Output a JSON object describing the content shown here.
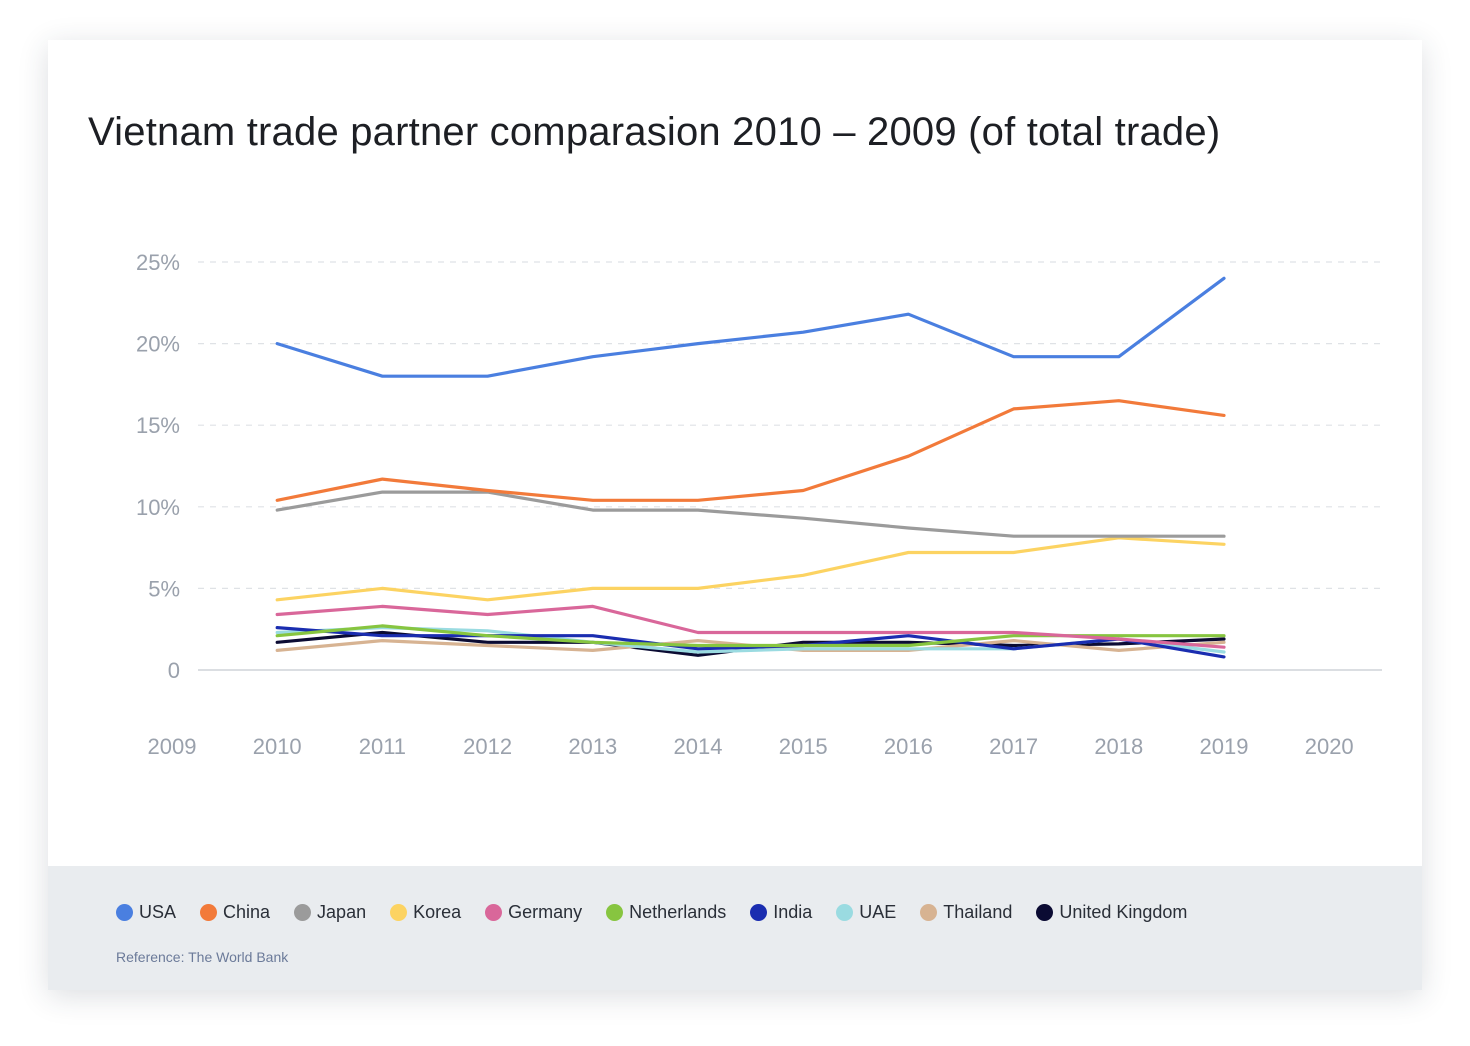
{
  "title": "Vietnam trade partner comparasion 2010 – 2009 (of total trade)",
  "reference": "Reference: The World Bank",
  "chart_data": {
    "type": "line",
    "title": "Vietnam trade partner comparasion 2010 – 2009 (of total trade)",
    "xlabel": "",
    "ylabel": "",
    "x_ticks": [
      "2009",
      "2010",
      "2011",
      "2012",
      "2013",
      "2014",
      "2015",
      "2016",
      "2017",
      "2018",
      "2019",
      "2020"
    ],
    "y_ticks": [
      "0",
      "5%",
      "10%",
      "15%",
      "20%",
      "25%"
    ],
    "xlim": [
      2009,
      2020
    ],
    "ylim": [
      0,
      25
    ],
    "grid": "horizontal dashed",
    "legend_position": "bottom",
    "x": [
      2010,
      2011,
      2012,
      2013,
      2014,
      2015,
      2016,
      2017,
      2018,
      2019
    ],
    "series": [
      {
        "name": "USA",
        "color": "#4a7fe0",
        "values": [
          20,
          18,
          18,
          19.2,
          20,
          20.7,
          21.8,
          19.2,
          19.2,
          24
        ]
      },
      {
        "name": "China",
        "color": "#f27a3a",
        "values": [
          10.4,
          11.7,
          11,
          10.4,
          10.4,
          11,
          13.1,
          16,
          16.5,
          15.6
        ]
      },
      {
        "name": "Japan",
        "color": "#9b9b9b",
        "values": [
          9.8,
          10.9,
          10.9,
          9.8,
          9.8,
          9.3,
          8.7,
          8.2,
          8.2,
          8.2
        ]
      },
      {
        "name": "Korea",
        "color": "#fcd362",
        "values": [
          4.3,
          5,
          4.3,
          5,
          5,
          5.8,
          7.2,
          7.2,
          8.1,
          7.7
        ]
      },
      {
        "name": "Germany",
        "color": "#d9679a",
        "values": [
          3.4,
          3.9,
          3.4,
          3.9,
          2.3,
          2.3,
          2.3,
          2.3,
          1.9,
          1.4
        ]
      },
      {
        "name": "Netherlands",
        "color": "#87c540",
        "values": [
          2.1,
          2.7,
          2.1,
          1.7,
          1.5,
          1.5,
          1.5,
          2.1,
          2.1,
          2.1
        ]
      },
      {
        "name": "India",
        "color": "#1a2db0",
        "values": [
          2.6,
          2.1,
          2.1,
          2.1,
          1.3,
          1.5,
          2.1,
          1.3,
          1.9,
          0.8
        ]
      },
      {
        "name": "UAE",
        "color": "#9adbe1",
        "values": [
          2.3,
          2.6,
          2.4,
          1.7,
          1.1,
          1.3,
          1.3,
          1.3,
          1.9,
          1.1
        ]
      },
      {
        "name": "Thailand",
        "color": "#d7b392",
        "values": [
          1.2,
          1.8,
          1.5,
          1.2,
          1.8,
          1.2,
          1.2,
          1.8,
          1.2,
          1.7
        ]
      },
      {
        "name": "United Kingdom",
        "color": "#0b0b33",
        "values": [
          1.7,
          2.3,
          1.7,
          1.7,
          0.9,
          1.7,
          1.7,
          1.5,
          1.6,
          1.9
        ]
      }
    ]
  }
}
